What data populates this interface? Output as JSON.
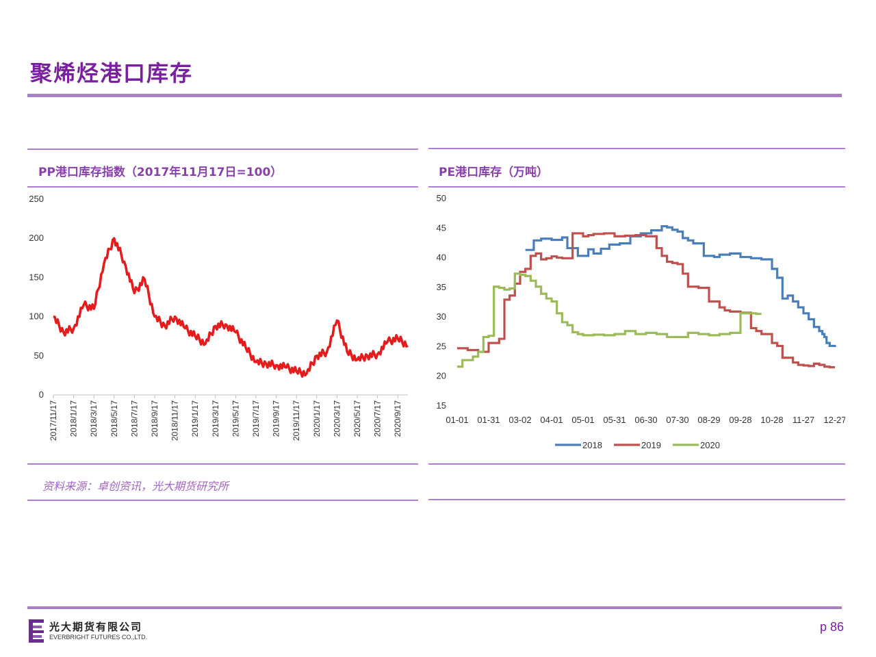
{
  "page": {
    "title": "聚烯烃港口库存",
    "source_note": "资料来源：卓创资讯，光大期货研究所",
    "page_number": "p 86",
    "accent_color": "#7b1fa2"
  },
  "logo": {
    "name_cn": "光大期货有限公司",
    "name_en": "EVERBRIGHT FUTURES CO.,LTD."
  },
  "chart_data": [
    {
      "type": "line",
      "title": "PP港口库存指数（2017年11月17日=100）",
      "x": [
        "2017/11/17",
        "2017/12/17",
        "2018/1/17",
        "2018/2/17",
        "2018/3/17",
        "2018/4/17",
        "2018/5/17",
        "2018/6/17",
        "2018/7/17",
        "2018/8/17",
        "2018/9/17",
        "2018/10/17",
        "2018/11/17",
        "2018/12/17",
        "2019/1/17",
        "2019/2/17",
        "2019/3/17",
        "2019/4/17",
        "2019/5/17",
        "2019/6/17",
        "2019/7/17",
        "2019/8/17",
        "2019/9/17",
        "2019/10/17",
        "2019/11/17",
        "2019/12/17",
        "2020/1/17",
        "2020/2/17",
        "2020/3/17",
        "2020/4/17",
        "2020/5/17",
        "2020/6/17",
        "2020/7/17",
        "2020/8/17",
        "2020/9/17",
        "2020/10/17"
      ],
      "x_tick_labels": [
        "2017/11/17",
        "2018/1/17",
        "2018/3/17",
        "2018/5/17",
        "2018/7/17",
        "2018/9/17",
        "2018/11/17",
        "2019/1/17",
        "2019/3/17",
        "2019/5/17",
        "2019/7/17",
        "2019/9/17",
        "2019/11/17",
        "2020/1/17",
        "2020/3/17",
        "2020/5/17",
        "2020/7/17",
        "2020/9/17"
      ],
      "series": [
        {
          "name": "",
          "color": "#e61c1c",
          "values": [
            100,
            80,
            85,
            115,
            110,
            168,
            200,
            170,
            130,
            148,
            100,
            88,
            100,
            85,
            75,
            65,
            88,
            90,
            80,
            60,
            42,
            40,
            38,
            35,
            30,
            27,
            50,
            55,
            95,
            55,
            45,
            50,
            52,
            68,
            72,
            63
          ]
        }
      ],
      "ylim": [
        0,
        250
      ],
      "y_ticks": [
        0,
        50,
        100,
        150,
        200,
        250
      ],
      "legend": "none",
      "grid": false
    },
    {
      "type": "line",
      "title": "PE港口库存（万吨）",
      "x_tick_labels": [
        "01-01",
        "01-31",
        "03-02",
        "04-01",
        "05-01",
        "05-31",
        "06-30",
        "07-30",
        "08-29",
        "09-28",
        "10-28",
        "11-27",
        "12-27"
      ],
      "xlim": [
        0,
        360
      ],
      "ylim": [
        15,
        50
      ],
      "y_ticks": [
        15,
        20,
        25,
        30,
        35,
        40,
        45,
        50
      ],
      "legend": "bottom",
      "grid": false,
      "series": [
        {
          "name": "2018",
          "color": "#4a7ebb",
          "x": [
            65,
            73,
            80,
            90,
            100,
            105,
            115,
            125,
            130,
            137,
            145,
            155,
            165,
            175,
            185,
            195,
            200,
            205,
            210,
            215,
            220,
            225,
            235,
            245,
            250,
            260,
            270,
            280,
            290,
            300,
            305,
            310,
            315,
            320,
            325,
            330,
            335,
            340,
            345,
            348,
            350,
            352,
            355,
            360
          ],
          "y": [
            41.2,
            42.8,
            43.1,
            42.9,
            43.3,
            41.5,
            40.2,
            41.3,
            40.6,
            41.4,
            42.1,
            42.3,
            43.5,
            44.0,
            44.5,
            45.2,
            45.0,
            44.6,
            44.3,
            43.2,
            42.8,
            42.3,
            40.2,
            40.0,
            40.4,
            40.6,
            40.0,
            39.8,
            39.6,
            38.0,
            36.5,
            33.0,
            33.5,
            32.5,
            31.5,
            30.5,
            29.5,
            28.2,
            27.5,
            27.0,
            26.5,
            25.5,
            25.0,
            24.8
          ]
        },
        {
          "name": "2019",
          "color": "#c0504d",
          "x": [
            0,
            10,
            20,
            30,
            40,
            45,
            50,
            55,
            60,
            65,
            70,
            75,
            80,
            85,
            90,
            95,
            100,
            110,
            120,
            125,
            130,
            140,
            150,
            160,
            170,
            180,
            190,
            195,
            200,
            205,
            210,
            215,
            220,
            230,
            240,
            250,
            255,
            260,
            270,
            280,
            285,
            290,
            300,
            305,
            310,
            320,
            325,
            330,
            335,
            340,
            345,
            350,
            355,
            360
          ],
          "y": [
            24.6,
            24.3,
            24.0,
            25.5,
            26.2,
            32.8,
            33.5,
            35.5,
            37.5,
            38.0,
            40.2,
            40.6,
            39.6,
            39.8,
            40.1,
            39.9,
            39.8,
            44.0,
            43.5,
            43.7,
            43.9,
            44.0,
            43.5,
            43.6,
            43.7,
            43.5,
            41.5,
            40.2,
            39.2,
            39.0,
            38.8,
            37.2,
            35.0,
            34.8,
            32.5,
            31.5,
            31.0,
            30.8,
            30.6,
            28.0,
            27.5,
            27.0,
            25.5,
            25.0,
            23.0,
            22.2,
            21.8,
            21.7,
            21.6,
            22.0,
            21.8,
            21.5,
            21.4,
            21.4
          ]
        },
        {
          "name": "2020",
          "color": "#9bbb59",
          "x": [
            0,
            5,
            15,
            20,
            25,
            30,
            35,
            40,
            45,
            50,
            55,
            60,
            65,
            70,
            75,
            80,
            85,
            90,
            95,
            100,
            105,
            110,
            115,
            120,
            130,
            140,
            150,
            160,
            170,
            180,
            190,
            200,
            210,
            220,
            230,
            240,
            250,
            260,
            270,
            280,
            285,
            290
          ],
          "y": [
            21.5,
            22.6,
            23.2,
            24.0,
            26.5,
            26.7,
            35.0,
            34.8,
            34.5,
            34.7,
            37.2,
            37.0,
            36.8,
            36.0,
            35.0,
            33.8,
            33.0,
            32.5,
            30.5,
            29.0,
            28.5,
            27.3,
            27.0,
            26.8,
            26.9,
            26.8,
            27.0,
            27.5,
            27.0,
            27.2,
            27.0,
            26.5,
            26.5,
            27.2,
            27.0,
            26.8,
            27.0,
            27.2,
            30.5,
            30.5,
            30.4,
            30.4
          ]
        }
      ]
    }
  ]
}
